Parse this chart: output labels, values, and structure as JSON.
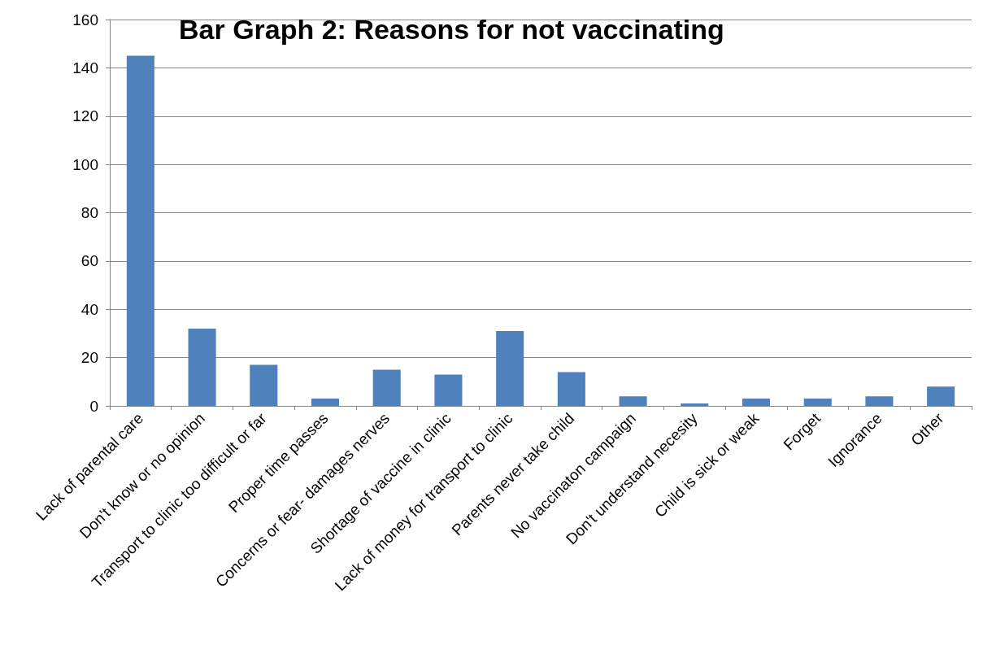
{
  "chart_data": {
    "type": "bar",
    "title": "Bar Graph 2: Reasons for not vaccinating",
    "categories": [
      "Lack of parental care",
      "Don't know or no opinion",
      "Transport to clinic too difficult or far",
      "Proper time passes",
      "Concerns or fear- damages nerves",
      "Shortage of vaccine in clinic",
      "Lack of money for transport to clinic",
      "Parents never take child",
      "No vaccinaton campaign",
      "Don't understand necesity",
      "Child is sick or weak",
      "Forget",
      "Ignorance",
      "Other"
    ],
    "values": [
      145,
      32,
      17,
      3,
      15,
      13,
      31,
      14,
      4,
      1,
      3,
      3,
      4,
      8
    ],
    "color": "#4f81bd",
    "ylim": [
      0,
      160
    ],
    "yticks": [
      0,
      20,
      40,
      60,
      80,
      100,
      120,
      140,
      160
    ],
    "grid": "y"
  }
}
